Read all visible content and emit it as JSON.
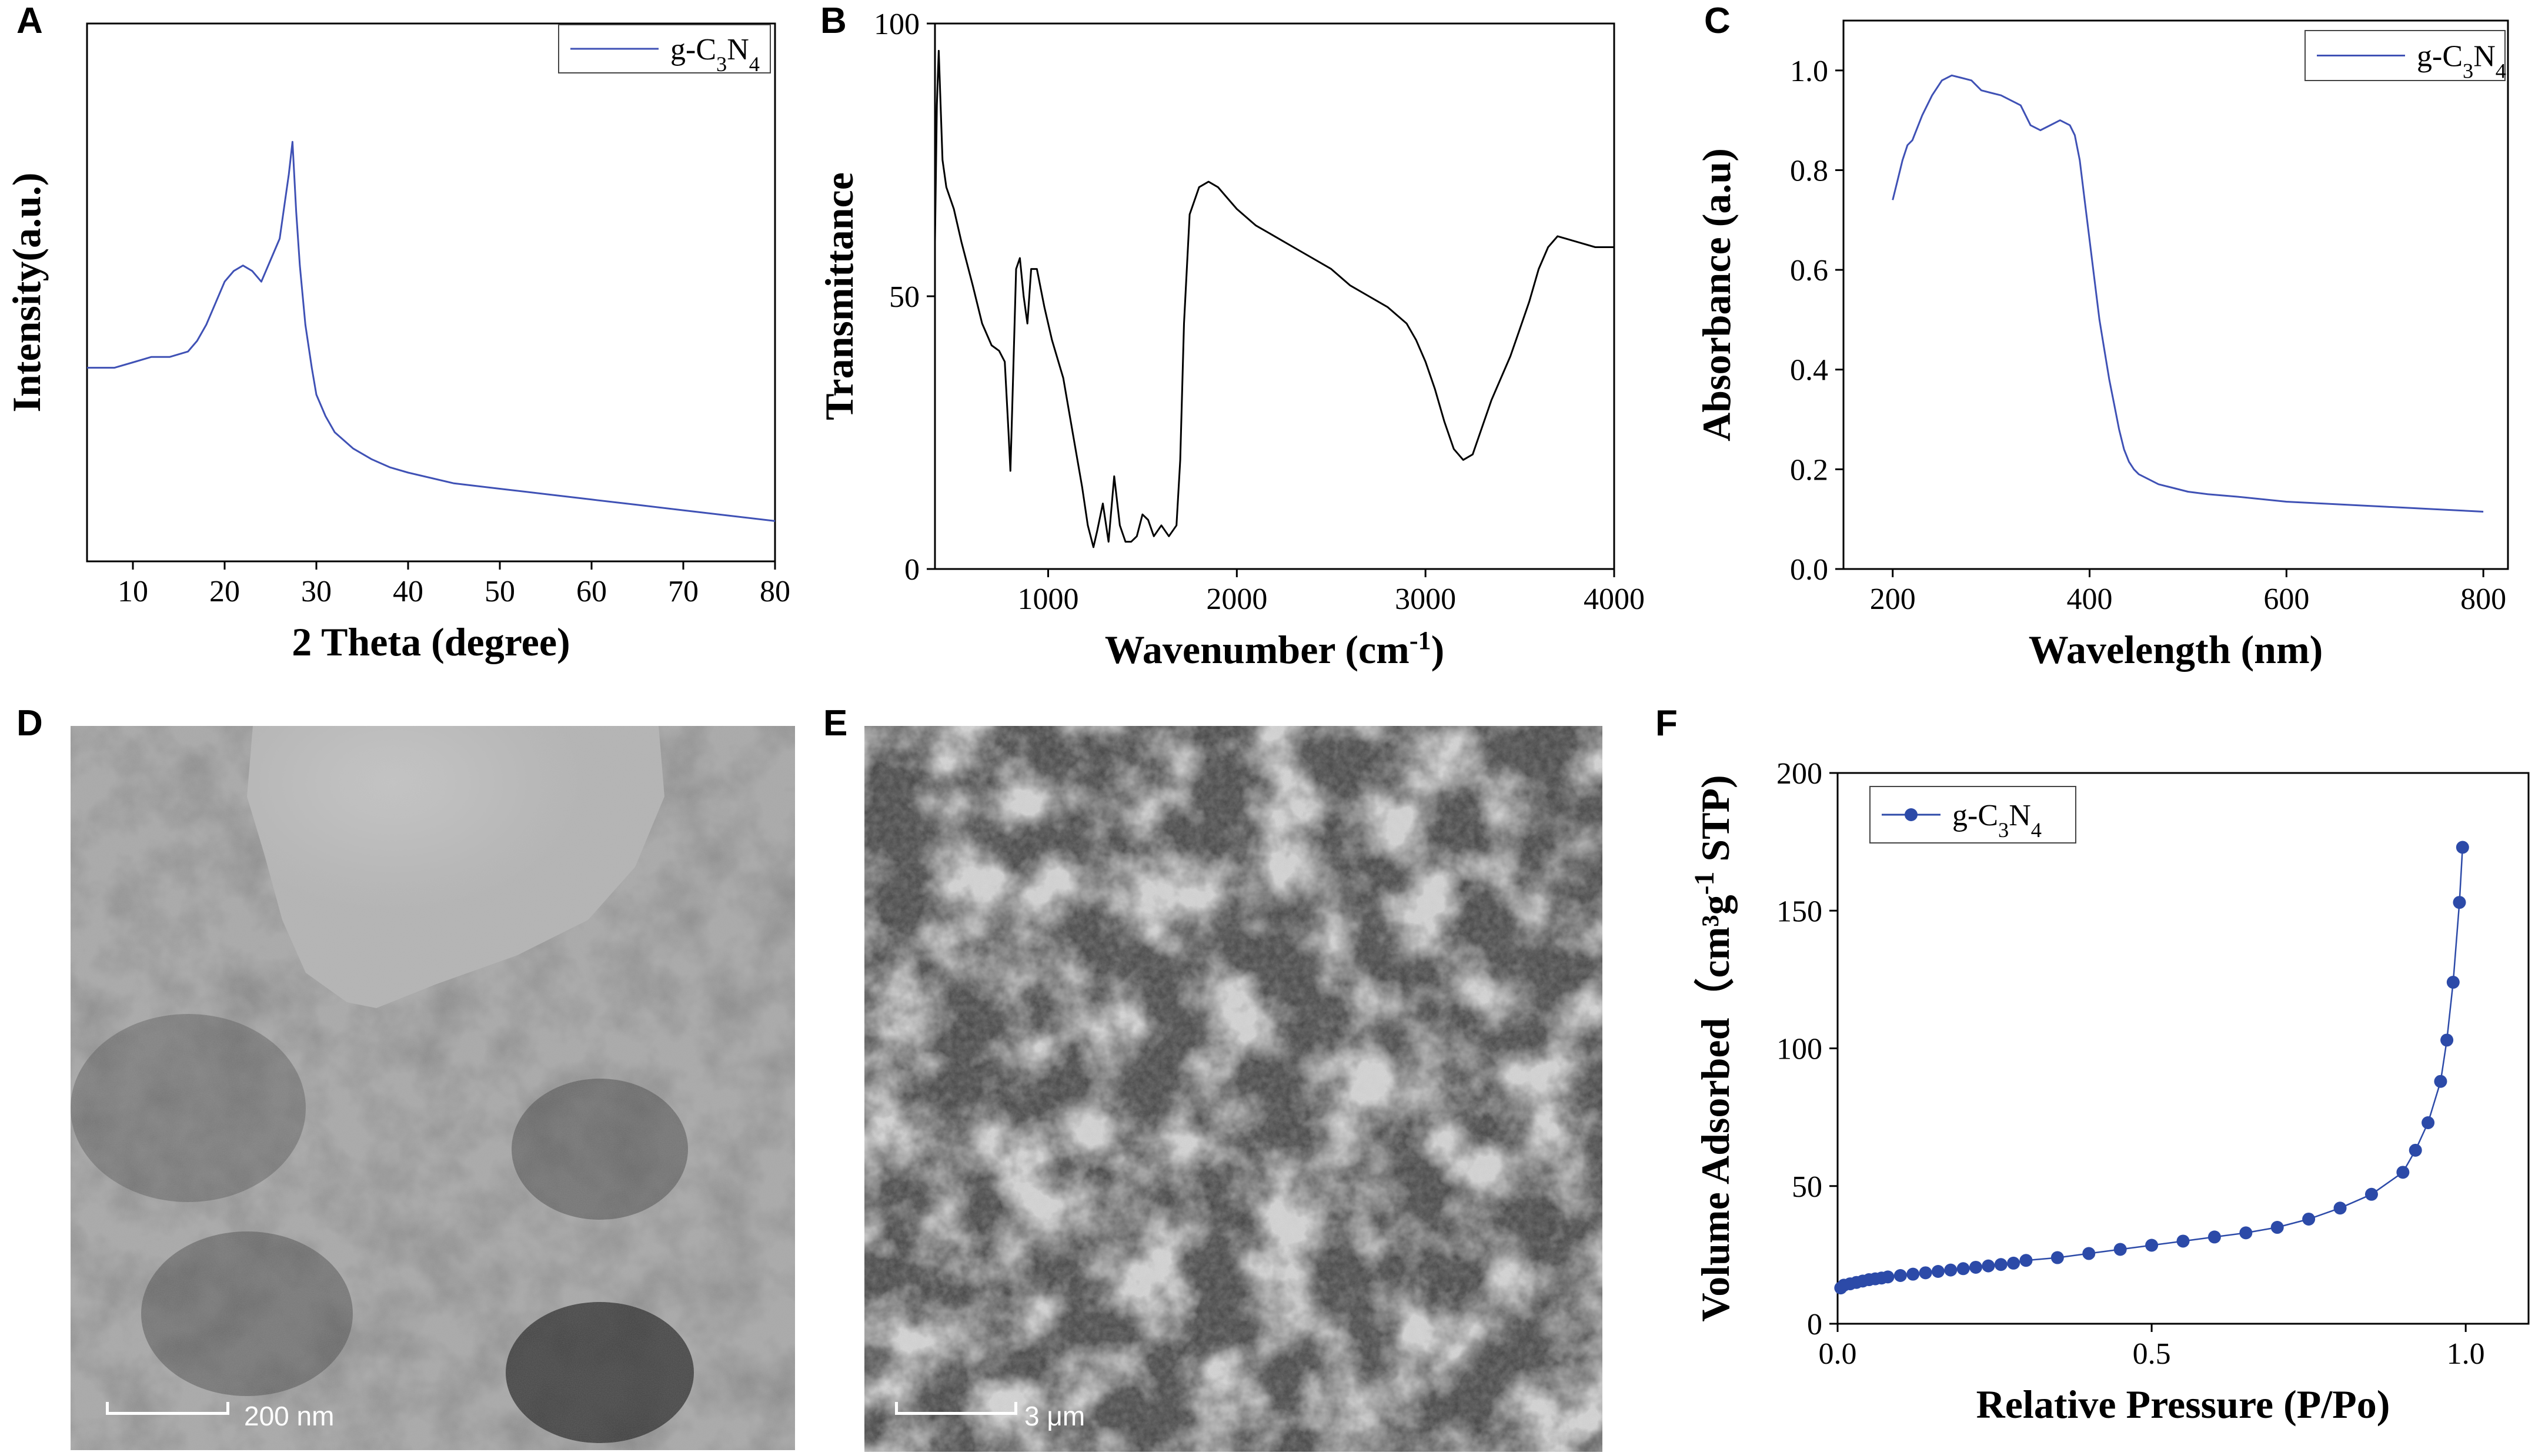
{
  "panels": {
    "A": "A",
    "B": "B",
    "C": "C",
    "D": "D",
    "E": "E",
    "F": "F"
  },
  "chart_data": [
    {
      "panel": "A",
      "type": "line",
      "xlabel": "2 Theta (degree)",
      "ylabel": "Intensity(a.u.)",
      "xlim": [
        5,
        80
      ],
      "xticks": [
        10,
        20,
        30,
        40,
        50,
        60,
        70,
        80
      ],
      "ylim": [
        0,
        1
      ],
      "yticks": [],
      "legend": "top-right",
      "color": "#3f51b5",
      "series": [
        {
          "name": "g-C3N4",
          "x": [
            5,
            8,
            10,
            12,
            14,
            16,
            17,
            18,
            19,
            20,
            21,
            22,
            23,
            24,
            25,
            26,
            26.5,
            27,
            27.4,
            27.8,
            28.2,
            28.8,
            29.5,
            30,
            31,
            32,
            34,
            36,
            38,
            40,
            45,
            50,
            55,
            60,
            65,
            70,
            75,
            80
          ],
          "y": [
            0.36,
            0.36,
            0.37,
            0.38,
            0.38,
            0.39,
            0.41,
            0.44,
            0.48,
            0.52,
            0.54,
            0.55,
            0.54,
            0.52,
            0.56,
            0.6,
            0.66,
            0.72,
            0.78,
            0.65,
            0.55,
            0.44,
            0.36,
            0.31,
            0.27,
            0.24,
            0.21,
            0.19,
            0.175,
            0.165,
            0.145,
            0.135,
            0.125,
            0.115,
            0.105,
            0.095,
            0.085,
            0.075
          ]
        }
      ],
      "legend_label": {
        "base": "g-C",
        "sub1": "3",
        "mid": "N",
        "sub2": "4"
      }
    },
    {
      "panel": "B",
      "type": "line",
      "xlabel": "Wavenumber (cm",
      "xlabel_sup": "-1",
      "xlabel_end": ")",
      "ylabel": "Transmittance",
      "xlim": [
        400,
        4000
      ],
      "xticks": [
        1000,
        2000,
        3000,
        4000
      ],
      "ylim": [
        0,
        100
      ],
      "yticks": [
        0,
        50,
        100
      ],
      "color": "#000000",
      "series": [
        {
          "name": "",
          "x": [
            400,
            410,
            420,
            440,
            460,
            480,
            500,
            540,
            600,
            650,
            700,
            740,
            770,
            790,
            800,
            810,
            830,
            850,
            870,
            890,
            910,
            940,
            980,
            1020,
            1080,
            1130,
            1180,
            1210,
            1240,
            1260,
            1290,
            1320,
            1350,
            1380,
            1410,
            1440,
            1470,
            1500,
            1530,
            1560,
            1600,
            1640,
            1680,
            1700,
            1720,
            1750,
            1800,
            1850,
            1900,
            1950,
            2000,
            2100,
            2200,
            2300,
            2400,
            2500,
            2600,
            2700,
            2800,
            2900,
            2950,
            3000,
            3050,
            3100,
            3150,
            3200,
            3250,
            3300,
            3350,
            3400,
            3450,
            3500,
            3550,
            3600,
            3650,
            3700,
            3800,
            3900,
            4000
          ],
          "y": [
            60,
            85,
            95,
            75,
            70,
            68,
            66,
            60,
            52,
            45,
            41,
            40,
            38,
            25,
            18,
            30,
            55,
            57,
            50,
            45,
            55,
            55,
            48,
            42,
            35,
            25,
            15,
            8,
            4,
            7,
            12,
            5,
            17,
            8,
            5,
            5,
            6,
            10,
            9,
            6,
            8,
            6,
            8,
            20,
            45,
            65,
            70,
            71,
            70,
            68,
            66,
            63,
            61,
            59,
            57,
            55,
            52,
            50,
            48,
            45,
            42,
            38,
            33,
            27,
            22,
            20,
            21,
            26,
            31,
            35,
            39,
            44,
            49,
            55,
            59,
            61,
            60,
            59,
            59
          ]
        }
      ]
    },
    {
      "panel": "C",
      "type": "line",
      "xlabel": "Wavelength (nm)",
      "ylabel": "Absorbance (a.u)",
      "xlim": [
        150,
        825
      ],
      "xticks": [
        200,
        400,
        600,
        800
      ],
      "ylim": [
        0,
        1.1
      ],
      "yticks": [
        0.0,
        0.2,
        0.4,
        0.6,
        0.8,
        1.0
      ],
      "legend": "top-right",
      "color": "#3f51b5",
      "series": [
        {
          "name": "g-C3N4",
          "x": [
            200,
            205,
            210,
            215,
            220,
            230,
            240,
            250,
            260,
            270,
            280,
            290,
            300,
            310,
            320,
            330,
            340,
            350,
            360,
            370,
            380,
            385,
            390,
            395,
            400,
            405,
            410,
            415,
            420,
            425,
            430,
            435,
            440,
            445,
            450,
            460,
            470,
            480,
            500,
            520,
            550,
            600,
            650,
            700,
            750,
            800
          ],
          "y": [
            0.74,
            0.78,
            0.82,
            0.85,
            0.86,
            0.91,
            0.95,
            0.98,
            0.99,
            0.985,
            0.98,
            0.96,
            0.955,
            0.95,
            0.94,
            0.93,
            0.89,
            0.88,
            0.89,
            0.9,
            0.89,
            0.87,
            0.82,
            0.74,
            0.66,
            0.58,
            0.5,
            0.44,
            0.38,
            0.33,
            0.28,
            0.24,
            0.215,
            0.2,
            0.19,
            0.18,
            0.17,
            0.165,
            0.155,
            0.15,
            0.145,
            0.135,
            0.13,
            0.125,
            0.12,
            0.115
          ]
        }
      ],
      "legend_label": {
        "base": "g-C",
        "sub1": "3",
        "mid": "N",
        "sub2": "4"
      }
    },
    {
      "panel": "F",
      "type": "scatter",
      "xlabel": "Relative Pressure (P/Po)",
      "ylabel": "Volume Adsorbed（cm³g",
      "ylabel_sup": "-1",
      "ylabel_end": " STP)",
      "xlim": [
        0,
        1.1
      ],
      "xticks": [
        0.0,
        0.5,
        1.0
      ],
      "ylim": [
        0,
        200
      ],
      "yticks": [
        0,
        50,
        100,
        150,
        200
      ],
      "legend": "top-left",
      "color": "#2c4aa8",
      "series": [
        {
          "name": "g-C3N4",
          "x": [
            0.005,
            0.01,
            0.02,
            0.03,
            0.04,
            0.05,
            0.06,
            0.07,
            0.08,
            0.1,
            0.12,
            0.14,
            0.16,
            0.18,
            0.2,
            0.22,
            0.24,
            0.26,
            0.28,
            0.3,
            0.35,
            0.4,
            0.45,
            0.5,
            0.55,
            0.6,
            0.65,
            0.7,
            0.75,
            0.8,
            0.85,
            0.9,
            0.92,
            0.94,
            0.96,
            0.97,
            0.98,
            0.99,
            0.995
          ],
          "y": [
            13,
            14,
            14.5,
            15,
            15.5,
            16,
            16.3,
            16.6,
            17,
            17.5,
            18,
            18.5,
            19,
            19.5,
            20,
            20.5,
            21,
            21.5,
            22,
            23,
            24,
            25.5,
            27,
            28.5,
            30,
            31.5,
            33,
            35,
            38,
            42,
            47,
            55,
            63,
            73,
            88,
            103,
            124,
            153,
            173
          ]
        }
      ],
      "legend_label": {
        "base": "g-C",
        "sub1": "3",
        "mid": "N",
        "sub2": "4"
      }
    }
  ],
  "images": {
    "D": {
      "scale_label": "200 nm"
    },
    "E": {
      "scale_label": "3 μm"
    }
  }
}
